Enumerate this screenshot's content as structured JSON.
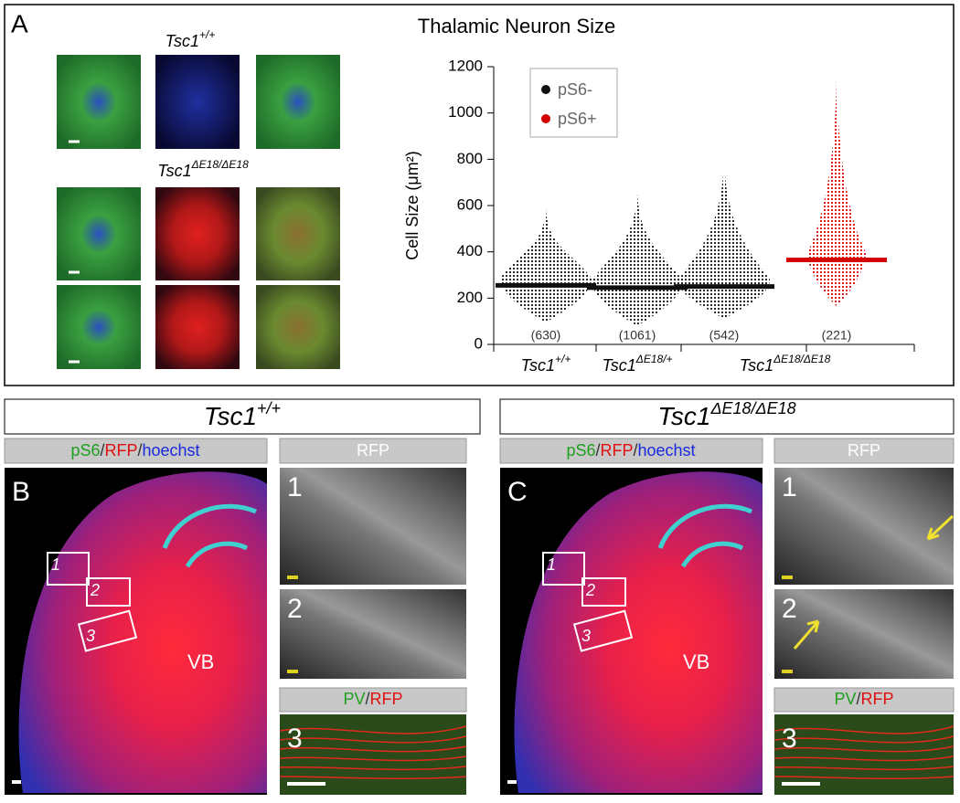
{
  "panel_a": {
    "label": "A",
    "genotype_top": {
      "base": "Tsc1",
      "sup": "+/+"
    },
    "genotype_bottom": {
      "base": "Tsc1",
      "sup": "ΔE18/ΔE18"
    }
  },
  "chart_data": {
    "type": "strip",
    "title": "Thalamic Neuron Size",
    "y_label": "Cell Size (μm²)",
    "categories": [
      "Tsc1",
      "Tsc1",
      "Tsc1",
      null
    ],
    "category_superscripts": [
      "+/+",
      "ΔE18/+",
      "ΔE18/ΔE18",
      null
    ],
    "ylim": [
      0,
      1200
    ],
    "yticks": [
      0,
      200,
      400,
      600,
      800,
      1000,
      1200
    ],
    "legend": "top-left",
    "counts": [
      630,
      1061,
      542,
      221
    ],
    "value_labels": [
      "(630)",
      "(1061)",
      "(542)",
      "(221)"
    ],
    "series": [
      {
        "name": "pS6-",
        "color": "#111111",
        "values": [
          255,
          245,
          250,
          null
        ],
        "min": [
          95,
          80,
          110,
          null
        ],
        "max": [
          590,
          660,
          800,
          null
        ]
      },
      {
        "name": "pS6+",
        "color": "#d40000",
        "values": [
          null,
          null,
          null,
          365
        ],
        "min": [
          null,
          null,
          null,
          165
        ],
        "max": [
          null,
          null,
          null,
          1150
        ]
      }
    ]
  },
  "panel_b": {
    "header": {
      "base": "Tsc1",
      "sup": "+/+"
    },
    "label": "B",
    "stain": [
      "pS6",
      "/",
      "RFP",
      "/",
      "hoechst"
    ],
    "region": "VB",
    "boxes": [
      "1",
      "2",
      "3"
    ],
    "inset_header": "RFP",
    "insets": [
      "1",
      "2",
      "3"
    ],
    "inset3_stain": [
      "PV",
      "/",
      "RFP"
    ]
  },
  "panel_c": {
    "header": {
      "base": "Tsc1",
      "sup": "ΔE18/ΔE18"
    },
    "label": "C",
    "stain": [
      "pS6",
      "/",
      "RFP",
      "/",
      "hoechst"
    ],
    "region": "VB",
    "boxes": [
      "1",
      "2",
      "3"
    ],
    "inset_header": "RFP",
    "insets": [
      "1",
      "2",
      "3"
    ],
    "inset3_stain": [
      "PV",
      "/",
      "RFP"
    ]
  }
}
